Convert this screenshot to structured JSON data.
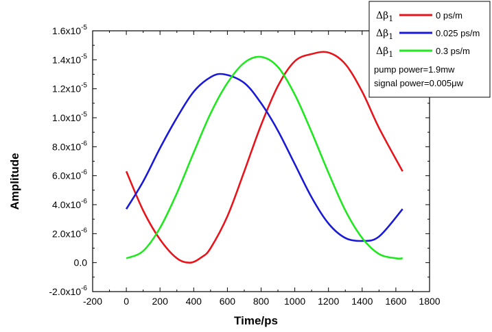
{
  "chart_data": {
    "type": "line",
    "xlabel": "Time/ps",
    "ylabel": "Amplitude",
    "xlim": [
      -200,
      1800
    ],
    "ylim": [
      -2e-06,
      1.6e-05
    ],
    "x_ticks": [
      -200,
      0,
      200,
      400,
      600,
      800,
      1000,
      1200,
      1400,
      1600,
      1800
    ],
    "x_tick_labels": [
      "-200",
      "0",
      "200",
      "400",
      "600",
      "800",
      "1000",
      "1200",
      "1400",
      "1600",
      "1800"
    ],
    "y_ticks": [
      {
        "value": -2e-06,
        "mantissa": "-2.0x10",
        "exp": "-6"
      },
      {
        "value": 0,
        "mantissa": "0.0",
        "exp": ""
      },
      {
        "value": 2e-06,
        "mantissa": "2.0x10",
        "exp": "-6"
      },
      {
        "value": 4e-06,
        "mantissa": "4.0x10",
        "exp": "-6"
      },
      {
        "value": 6e-06,
        "mantissa": "6.0x10",
        "exp": "-6"
      },
      {
        "value": 8e-06,
        "mantissa": "8.0x10",
        "exp": "-6"
      },
      {
        "value": 1e-05,
        "mantissa": "1.0x10",
        "exp": "-5"
      },
      {
        "value": 1.2e-05,
        "mantissa": "1.2x10",
        "exp": "-5"
      },
      {
        "value": 1.4e-05,
        "mantissa": "1.4x10",
        "exp": "-5"
      },
      {
        "value": 1.6e-05,
        "mantissa": "1.6x10",
        "exp": "-5"
      }
    ],
    "legend_placement": "top-right",
    "series": [
      {
        "name": "Δβ1 0 ps/m",
        "symbol": "Δβ",
        "subscript": "1",
        "value_label": "0 ps/m",
        "color": "#e8141b",
        "x": [
          0,
          100,
          200,
          300,
          380,
          450,
          500,
          600,
          700,
          800,
          900,
          1000,
          1100,
          1200,
          1300,
          1400,
          1500,
          1640
        ],
        "y": [
          6.3e-06,
          3.6e-06,
          1.6e-06,
          3e-07,
          0.0,
          4e-07,
          1e-06,
          3.2e-06,
          6.3e-06,
          9.5e-06,
          1.22e-05,
          1.39e-05,
          1.44e-05,
          1.45e-05,
          1.37e-05,
          1.18e-05,
          9.3e-06,
          6.3e-06
        ]
      },
      {
        "name": "Δβ1 0.025 ps/m",
        "symbol": "Δβ",
        "subscript": "1",
        "value_label": "0.025 ps/m",
        "color": "#1a1ad6",
        "x": [
          0,
          100,
          200,
          300,
          400,
          500,
          580,
          700,
          800,
          900,
          1000,
          1100,
          1200,
          1300,
          1400,
          1500,
          1640
        ],
        "y": [
          3.7e-06,
          5.6e-06,
          7.9e-06,
          1e-05,
          1.18e-05,
          1.28e-05,
          1.3e-05,
          1.24e-05,
          1.1e-05,
          9.1e-06,
          6.8e-06,
          4.5e-06,
          2.7e-06,
          1.7e-06,
          1.5e-06,
          1.8e-06,
          3.7e-06
        ]
      },
      {
        "name": "Δβ1 0.3 ps/m",
        "symbol": "Δβ",
        "subscript": "1",
        "value_label": "0.3 ps/m",
        "color": "#1fe81f",
        "x": [
          0,
          100,
          200,
          300,
          400,
          500,
          600,
          700,
          800,
          900,
          1000,
          1100,
          1200,
          1300,
          1400,
          1500,
          1600,
          1640
        ],
        "y": [
          3e-07,
          8e-07,
          2.4e-06,
          4.8e-06,
          7.6e-06,
          1.03e-05,
          1.24e-05,
          1.38e-05,
          1.42e-05,
          1.35e-05,
          1.16e-05,
          9e-06,
          6.2e-06,
          3.6e-06,
          1.7e-06,
          6e-07,
          3e-07,
          3e-07
        ]
      }
    ],
    "notes": [
      {
        "text": "pump power=1.9mw"
      },
      {
        "text": "signal power=0.005μw"
      }
    ]
  }
}
